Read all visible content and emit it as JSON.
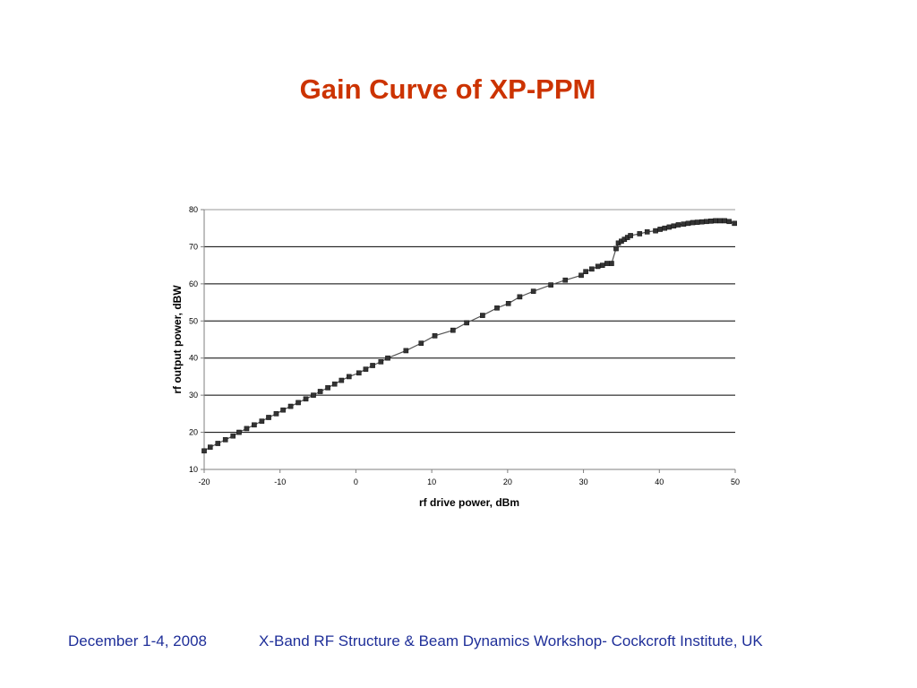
{
  "slide": {
    "title": "Gain Curve of XP-PPM"
  },
  "footer": {
    "date": "December 1-4, 2008",
    "event": "X-Band RF Structure & Beam Dynamics Workshop- Cockcroft Institute, UK"
  },
  "chart_data": {
    "type": "line",
    "xlabel": "rf drive power, dBm",
    "ylabel": "rf output power, dBW",
    "xlim": [
      -20,
      50
    ],
    "ylim": [
      10,
      80
    ],
    "xticks": [
      -20,
      -10,
      0,
      10,
      20,
      30,
      40,
      50
    ],
    "yticks": [
      10,
      20,
      30,
      40,
      50,
      60,
      70,
      80
    ],
    "grid": "horizontal",
    "legend": "none",
    "marker": "square",
    "series": [
      {
        "color": "#333333",
        "x": [
          -20,
          -19.2,
          -18.2,
          -17.2,
          -16.2,
          -15.4,
          -14.4,
          -13.4,
          -12.4,
          -11.5,
          -10.5,
          -9.6,
          -8.6,
          -7.6,
          -6.6,
          -5.6,
          -4.7,
          -3.7,
          -2.8,
          -1.9,
          -0.9,
          0.4,
          1.3,
          2.2,
          3.3,
          4.2,
          6.6,
          8.6,
          10.4,
          12.8,
          14.6,
          16.7,
          18.6,
          20.1,
          21.6,
          23.4,
          25.7,
          27.6,
          29.7,
          30.3,
          31.1,
          31.9,
          32.5,
          33.1,
          33.7,
          34.3,
          34.6,
          35.0,
          35.4,
          35.8,
          36.2,
          37.4,
          38.4,
          39.5,
          40.1,
          40.7,
          41.3,
          41.9,
          42.5,
          43.2,
          43.8,
          44.4,
          45.0,
          45.6,
          46.2,
          46.8,
          47.4,
          48.0,
          48.6,
          49.2,
          49.9
        ],
        "y": [
          15,
          16,
          17,
          18,
          19,
          20,
          21,
          22,
          23,
          24,
          25,
          26,
          27,
          28,
          29,
          30,
          31,
          32,
          33,
          34,
          35,
          36,
          37,
          38,
          39,
          40,
          42,
          44,
          46,
          47.5,
          49.5,
          51.5,
          53.5,
          54.7,
          56.5,
          58,
          59.7,
          61,
          62.3,
          63.3,
          64,
          64.7,
          65,
          65.5,
          65.5,
          69.5,
          71,
          71.5,
          72,
          72.5,
          73,
          73.5,
          74,
          74.3,
          74.7,
          75,
          75.3,
          75.6,
          75.9,
          76.1,
          76.3,
          76.5,
          76.6,
          76.7,
          76.8,
          76.9,
          77,
          77,
          77,
          76.8,
          76.3
        ]
      }
    ]
  }
}
